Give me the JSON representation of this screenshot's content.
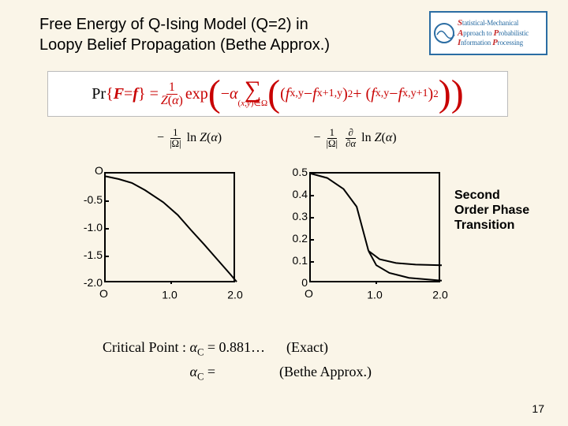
{
  "title": {
    "line1": "Free Energy of Q-Ising Model (Q=2) in",
    "line2": "Loopy Belief Propagation (Bethe Approx.)"
  },
  "logo": {
    "lines": [
      {
        "initial": "S",
        "rest": "tatistical-Mechanical"
      },
      {
        "initial": "A",
        "rest": "pproach to "
      },
      {
        "initial": "P",
        "rest": "robabilistic"
      },
      {
        "initial": "I",
        "rest": "nformation "
      },
      {
        "initial": "P",
        "rest": "rocessing"
      }
    ]
  },
  "formula_main": "Pr{F = f} = (1 / Z(α)) exp( −α Σ_{(x,y)∈Ω} [ (f_{x,y} − f_{x+1,y})² + (f_{x,y} − f_{x,y+1})² ] )",
  "sub_formula": {
    "left": "− (1 / |Ω|) ln Z(α)",
    "right": "− (1 / |Ω|) ∂/∂α ln Z(α)"
  },
  "annotation": {
    "l1": "Second",
    "l2": "Order Phase",
    "l3": "Transition"
  },
  "chart_left": {
    "type": "line",
    "xlim": [
      0,
      2.0
    ],
    "ylim": [
      -2.0,
      0
    ],
    "yticks": [
      "0",
      "-0.5",
      "-1.0",
      "-1.5",
      "-2.0"
    ],
    "xticks": [
      "0",
      "1.0",
      "2.0"
    ],
    "origin_label": "O",
    "curve_color": "#000000",
    "line_width": 2,
    "background": "transparent",
    "points": [
      [
        0.0,
        -0.05
      ],
      [
        0.2,
        -0.1
      ],
      [
        0.4,
        -0.17
      ],
      [
        0.6,
        -0.3
      ],
      [
        0.88,
        -0.52
      ],
      [
        1.1,
        -0.75
      ],
      [
        1.3,
        -1.02
      ],
      [
        1.5,
        -1.28
      ],
      [
        1.7,
        -1.55
      ],
      [
        1.9,
        -1.82
      ],
      [
        2.0,
        -1.96
      ]
    ]
  },
  "chart_right": {
    "type": "line-bifurcation",
    "xlim": [
      0,
      2.0
    ],
    "ylim": [
      0,
      0.5
    ],
    "yticks": [
      "0.5",
      "0.4",
      "0.3",
      "0.2",
      "0.1",
      "0"
    ],
    "xticks": [
      "0",
      "1.0",
      "2.0"
    ],
    "origin_label": "O",
    "curve_color": "#000000",
    "line_width": 2,
    "bifurcation_x": 0.881,
    "main_points": [
      [
        0.0,
        0.5
      ],
      [
        0.25,
        0.48
      ],
      [
        0.5,
        0.43
      ],
      [
        0.7,
        0.35
      ],
      [
        0.881,
        0.15
      ]
    ],
    "branch_upper": [
      [
        0.881,
        0.15
      ],
      [
        1.05,
        0.112
      ],
      [
        1.3,
        0.095
      ],
      [
        1.6,
        0.088
      ],
      [
        2.0,
        0.085
      ]
    ],
    "branch_lower": [
      [
        0.881,
        0.15
      ],
      [
        1.0,
        0.085
      ],
      [
        1.2,
        0.05
      ],
      [
        1.5,
        0.028
      ],
      [
        2.0,
        0.015
      ]
    ]
  },
  "critical": {
    "label": "Critical Point :",
    "row1_val": "α_C = 0.881…",
    "row1_note": "(Exact)",
    "row2_val": "α_C = ",
    "row2_note": "(Bethe Approx.)"
  },
  "pagenum": "17"
}
